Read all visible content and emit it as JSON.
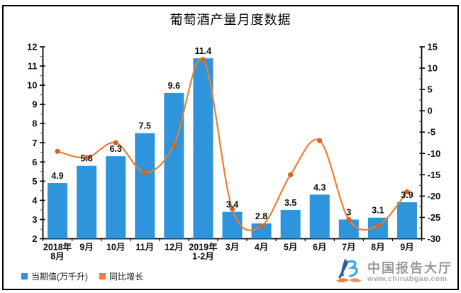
{
  "chart_data": {
    "type": "bar+line combo",
    "title": "葡萄酒产量月度数据",
    "categories": [
      "2018年\n8月",
      "9月",
      "10月",
      "11月",
      "12月",
      "2019年\n1-2月",
      "3月",
      "4月",
      "5月",
      "6月",
      "7月",
      "8月",
      "9月"
    ],
    "series": [
      {
        "name": "当期值(万千升)",
        "type": "bar",
        "axis": "left",
        "color": "#2e94db",
        "values": [
          4.9,
          5.8,
          6.3,
          7.5,
          9.6,
          11.4,
          3.4,
          2.8,
          3.5,
          4.3,
          3,
          3.1,
          3.9
        ]
      },
      {
        "name": "同比增长",
        "type": "line",
        "axis": "right",
        "color": "#ed7d31",
        "marker_color": "#d9641e",
        "values": [
          -9.5,
          -11,
          -7.5,
          -14.5,
          -8,
          12,
          -23,
          -27,
          -15,
          -7,
          -25.5,
          -27,
          -19
        ]
      }
    ],
    "left_axis": {
      "min": 2,
      "max": 12,
      "step": 1,
      "minor_step": 0.5
    },
    "right_axis": {
      "min": -30,
      "max": 15,
      "step": 5,
      "minor_step": 2.5
    },
    "axis_color": "#000000",
    "minor_tick_color": "#c0392b",
    "grid": false,
    "legend_position": "bottom-left"
  },
  "legend": [
    {
      "label": "当期值(万千升)",
      "color": "#2e94db"
    },
    {
      "label": "同比增长",
      "color": "#ed7d31"
    }
  ],
  "watermark": {
    "brand": "中国报告大厅",
    "url": "www.chinabgao.com"
  }
}
